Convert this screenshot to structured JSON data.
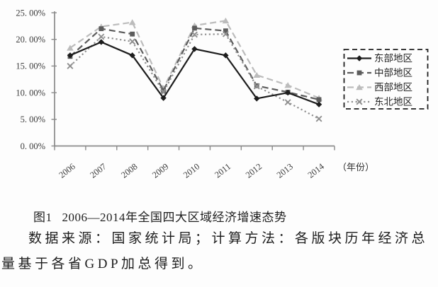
{
  "chart_data": {
    "type": "line",
    "title": "",
    "categories": [
      "2006",
      "2007",
      "2008",
      "2009",
      "2010",
      "2011",
      "2012",
      "2013",
      "2014"
    ],
    "xlabel": "（年份）",
    "ylabel": "",
    "ylim": [
      0,
      25
    ],
    "ytick_step": 5,
    "ytick_labels": [
      "0. 00%",
      "5. 00%",
      "10. 00%",
      "15. 00%",
      "20. 00%",
      "25. 00%"
    ],
    "grid": false,
    "legend_position": "right",
    "series": [
      {
        "key": "east",
        "name": "东部地区",
        "marker": "diamond",
        "line": "solid",
        "color": "#1d1d1d",
        "values": [
          17.0,
          19.5,
          17.0,
          9.0,
          18.2,
          17.0,
          8.9,
          10.0,
          7.8
        ]
      },
      {
        "key": "central",
        "name": "中部地区",
        "marker": "square",
        "line": "dashed",
        "color": "#5c5c5c",
        "values": [
          16.8,
          22.0,
          21.0,
          10.4,
          22.1,
          21.6,
          11.3,
          10.1,
          8.7
        ]
      },
      {
        "key": "west",
        "name": "西部地区",
        "marker": "triangle",
        "line": "dashed",
        "color": "#bcbcbc",
        "values": [
          18.4,
          22.4,
          23.2,
          10.8,
          22.6,
          23.5,
          13.3,
          11.4,
          9.0
        ]
      },
      {
        "key": "northeast",
        "name": "东北地区",
        "marker": "x",
        "line": "dotted",
        "color": "#8f8f8f",
        "values": [
          15.0,
          20.5,
          19.6,
          10.1,
          20.9,
          21.0,
          11.2,
          8.2,
          5.1
        ]
      }
    ]
  },
  "caption": {
    "figure_label": "图1",
    "figure_title": "2006—2014年全国四大区域经济增速态势",
    "source_note": "数据来源：国家统计局；计算方法：各版块历年经济总量基于各省GDP加总得到。"
  },
  "colors": {
    "axis": "#8a8a8a",
    "background": "#fdfdfd",
    "legend_border": "#1f1f1f"
  }
}
